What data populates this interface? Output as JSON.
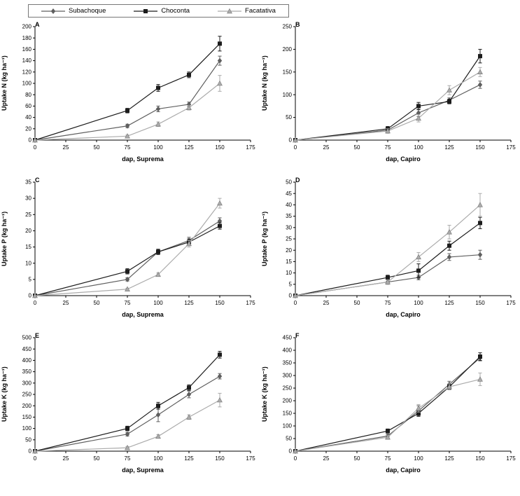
{
  "legend": {
    "items": [
      {
        "label": "Subachoque",
        "marker": "diamond",
        "color": "#5f5f5f"
      },
      {
        "label": "Choconta",
        "marker": "square",
        "color": "#1c1c1c"
      },
      {
        "label": "Facatativa",
        "marker": "triangle",
        "color": "#ababab"
      }
    ]
  },
  "chart_data": [
    {
      "type": "line",
      "panel": "A",
      "xlabel": "dap, Suprema",
      "ylabel": "Uptake N (kg ha⁻¹)",
      "x": [
        0,
        75,
        100,
        125,
        150
      ],
      "xlim": [
        0,
        175
      ],
      "xticks": [
        0,
        25,
        50,
        75,
        100,
        125,
        150,
        175
      ],
      "ylim": [
        0,
        200
      ],
      "ytick_step": 20,
      "series": [
        {
          "name": "Subachoque",
          "values": [
            0,
            25,
            55,
            63,
            140
          ],
          "errors": [
            0,
            3,
            5,
            4,
            8
          ]
        },
        {
          "name": "Choconta",
          "values": [
            0,
            52,
            92,
            115,
            170
          ],
          "errors": [
            0,
            4,
            6,
            5,
            13
          ]
        },
        {
          "name": "Facatativa",
          "values": [
            0,
            7,
            28,
            57,
            100
          ],
          "errors": [
            0,
            2,
            4,
            4,
            14
          ]
        }
      ]
    },
    {
      "type": "line",
      "panel": "B",
      "xlabel": "dap, Capiro",
      "ylabel": "Uptake N (kg ha⁻¹)",
      "x": [
        0,
        75,
        100,
        125,
        150
      ],
      "xlim": [
        0,
        175
      ],
      "xticks": [
        0,
        25,
        50,
        75,
        100,
        125,
        150,
        175
      ],
      "ylim": [
        0,
        250
      ],
      "ytick_step": 50,
      "series": [
        {
          "name": "Subachoque",
          "values": [
            0,
            22,
            60,
            88,
            122
          ],
          "errors": [
            0,
            4,
            8,
            5,
            8
          ]
        },
        {
          "name": "Choconta",
          "values": [
            0,
            25,
            75,
            85,
            185
          ],
          "errors": [
            0,
            5,
            8,
            5,
            15
          ]
        },
        {
          "name": "Facatativa",
          "values": [
            0,
            20,
            48,
            110,
            150
          ],
          "errors": [
            0,
            5,
            8,
            10,
            10
          ]
        }
      ]
    },
    {
      "type": "line",
      "panel": "C",
      "xlabel": "dap, Suprema",
      "ylabel": "Uptake P (kg ha⁻¹)",
      "x": [
        0,
        75,
        100,
        125,
        150
      ],
      "xlim": [
        0,
        175
      ],
      "xticks": [
        0,
        25,
        50,
        75,
        100,
        125,
        150,
        175
      ],
      "ylim": [
        0,
        35
      ],
      "ytick_step": 5,
      "series": [
        {
          "name": "Subachoque",
          "values": [
            0,
            5,
            13.5,
            17,
            23
          ],
          "errors": [
            0,
            0.5,
            0.8,
            1,
            1
          ]
        },
        {
          "name": "Choconta",
          "values": [
            0,
            7.5,
            13.5,
            16.5,
            21.5
          ],
          "errors": [
            0,
            0.8,
            0.8,
            1,
            1
          ]
        },
        {
          "name": "Facatativa",
          "values": [
            0,
            2,
            6.5,
            16,
            28.5
          ],
          "errors": [
            0,
            0.3,
            0.5,
            1,
            1.5
          ]
        }
      ]
    },
    {
      "type": "line",
      "panel": "D",
      "xlabel": "dap, Capiro",
      "ylabel": "Uptake P (kg ha⁻¹)",
      "x": [
        0,
        75,
        100,
        125,
        150
      ],
      "xlim": [
        0,
        175
      ],
      "xticks": [
        0,
        25,
        50,
        75,
        100,
        125,
        150,
        175
      ],
      "ylim": [
        0,
        50
      ],
      "ytick_step": 5,
      "series": [
        {
          "name": "Subachoque",
          "values": [
            0,
            6,
            8,
            17,
            18
          ],
          "errors": [
            0,
            1,
            1,
            1.5,
            2
          ]
        },
        {
          "name": "Choconta",
          "values": [
            0,
            8,
            11,
            22,
            32
          ],
          "errors": [
            0,
            1,
            3,
            2,
            2.5
          ]
        },
        {
          "name": "Facatativa",
          "values": [
            0,
            6,
            17,
            28,
            40
          ],
          "errors": [
            0,
            1,
            2,
            3,
            5
          ]
        }
      ]
    },
    {
      "type": "line",
      "panel": "E",
      "xlabel": "dap, Suprema",
      "ylabel": "Uptake K (kg ha⁻¹)",
      "x": [
        0,
        75,
        100,
        125,
        150
      ],
      "xlim": [
        0,
        175
      ],
      "xticks": [
        0,
        25,
        50,
        75,
        100,
        125,
        150,
        175
      ],
      "ylim": [
        0,
        500
      ],
      "ytick_step": 50,
      "series": [
        {
          "name": "Subachoque",
          "values": [
            0,
            75,
            160,
            250,
            330
          ],
          "errors": [
            0,
            8,
            30,
            15,
            12
          ]
        },
        {
          "name": "Choconta",
          "values": [
            0,
            100,
            200,
            280,
            425
          ],
          "errors": [
            0,
            10,
            15,
            12,
            15
          ]
        },
        {
          "name": "Facatativa",
          "values": [
            0,
            15,
            65,
            150,
            225
          ],
          "errors": [
            0,
            5,
            8,
            10,
            30
          ]
        }
      ]
    },
    {
      "type": "line",
      "panel": "F",
      "xlabel": "dap, Capiro",
      "ylabel": "Uptake K (kg ha⁻¹)",
      "x": [
        0,
        75,
        100,
        125,
        150
      ],
      "xlim": [
        0,
        175
      ],
      "xticks": [
        0,
        25,
        50,
        75,
        100,
        125,
        150,
        175
      ],
      "ylim": [
        0,
        450
      ],
      "ytick_step": 50,
      "series": [
        {
          "name": "Subachoque",
          "values": [
            0,
            60,
            160,
            265,
            370
          ],
          "errors": [
            0,
            8,
            20,
            12,
            12
          ]
        },
        {
          "name": "Choconta",
          "values": [
            0,
            80,
            150,
            255,
            375
          ],
          "errors": [
            0,
            8,
            12,
            10,
            15
          ]
        },
        {
          "name": "Facatativa",
          "values": [
            0,
            55,
            170,
            255,
            285
          ],
          "errors": [
            0,
            8,
            15,
            12,
            25
          ]
        }
      ]
    }
  ]
}
